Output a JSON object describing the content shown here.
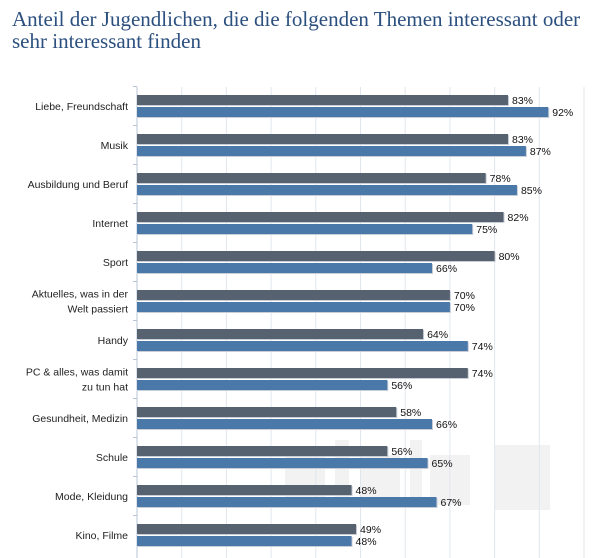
{
  "chart_data": {
    "type": "bar",
    "orientation": "horizontal",
    "title": "Anteil der Jugendlichen, die die folgenden Themen interessant oder sehr interessant finden",
    "categories": [
      [
        "Liebe, Freundschaft"
      ],
      [
        "Musik"
      ],
      [
        "Ausbildung und Beruf"
      ],
      [
        "Internet"
      ],
      [
        "Sport"
      ],
      [
        "Aktuelles, was in der",
        "Welt passiert"
      ],
      [
        "Handy"
      ],
      [
        "PC & alles, was damit",
        "zu tun hat"
      ],
      [
        "Gesundheit, Medizin"
      ],
      [
        "Schule"
      ],
      [
        "Mode, Kleidung"
      ],
      [
        "Kino, Filme"
      ]
    ],
    "series": [
      {
        "color": "#566270",
        "values": [
          83,
          83,
          78,
          82,
          80,
          70,
          64,
          74,
          58,
          56,
          48,
          49
        ]
      },
      {
        "color": "#4a78a8",
        "values": [
          92,
          87,
          85,
          75,
          66,
          70,
          74,
          56,
          66,
          65,
          67,
          48
        ]
      }
    ],
    "value_suffix": "%",
    "xlim": [
      0,
      100
    ],
    "grid": true,
    "watermark": "statista"
  }
}
